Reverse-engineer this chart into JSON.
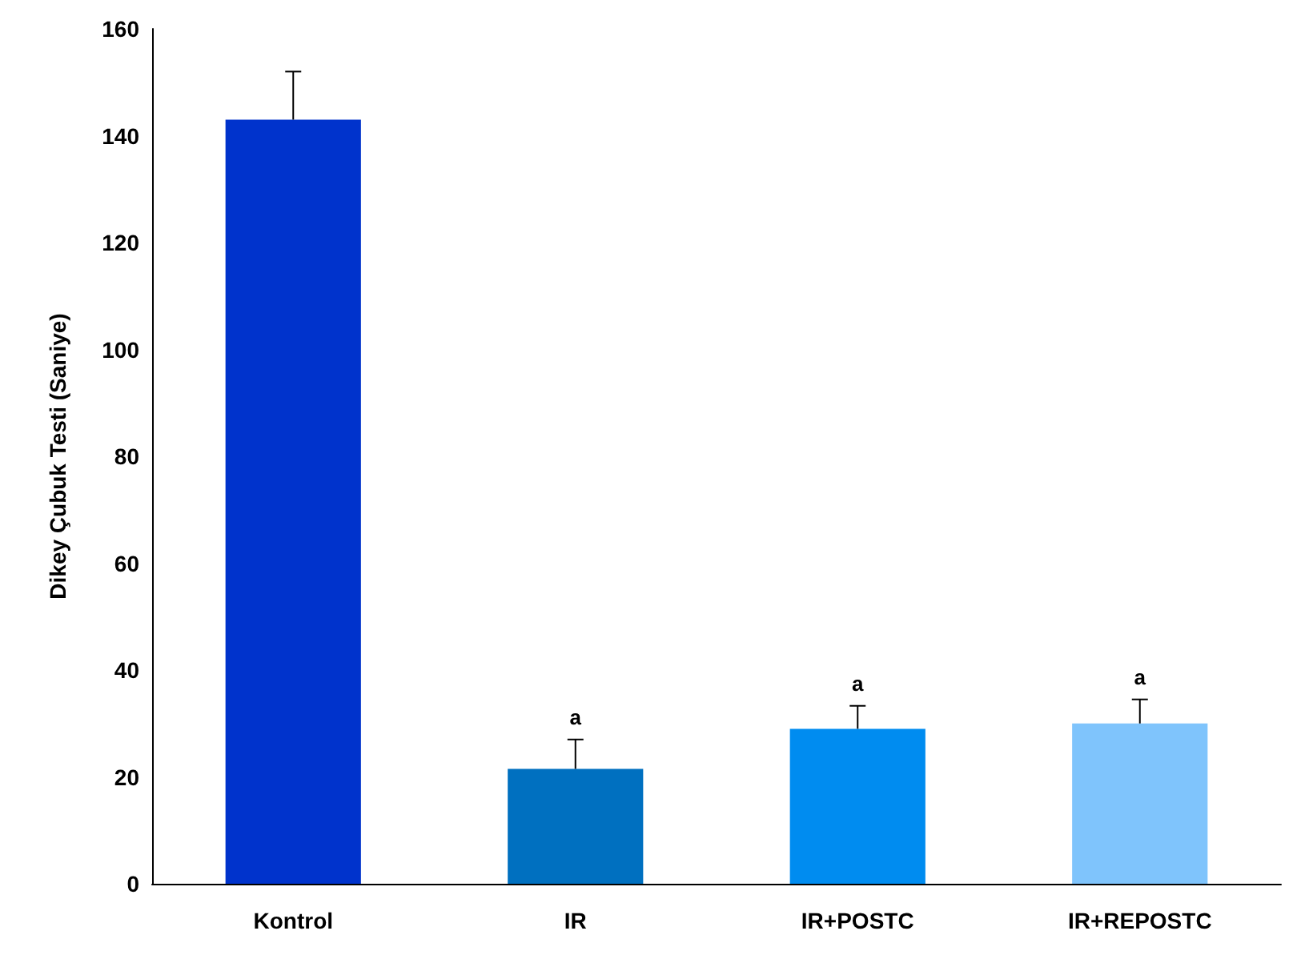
{
  "chart_data": {
    "type": "bar",
    "ylabel": "Dikey Çubuk Testi (Saniye)",
    "categories": [
      "Kontrol",
      "IR",
      "IR+POSTC",
      "IR+REPOSTC"
    ],
    "values": [
      143,
      21.5,
      29,
      30
    ],
    "colors": [
      "#0033cc",
      "#0070c0",
      "#008cf0",
      "#7fc4fc"
    ],
    "errors": [
      [
        143,
        152
      ],
      [
        21.5,
        27
      ],
      [
        29,
        33.3
      ],
      [
        30,
        34.5
      ]
    ],
    "ylim": [
      0,
      160
    ],
    "yticks": [
      0,
      20,
      40,
      60,
      80,
      100,
      120,
      140,
      160
    ],
    "grid": false,
    "annotations": [
      "a",
      "a",
      "a"
    ]
  }
}
